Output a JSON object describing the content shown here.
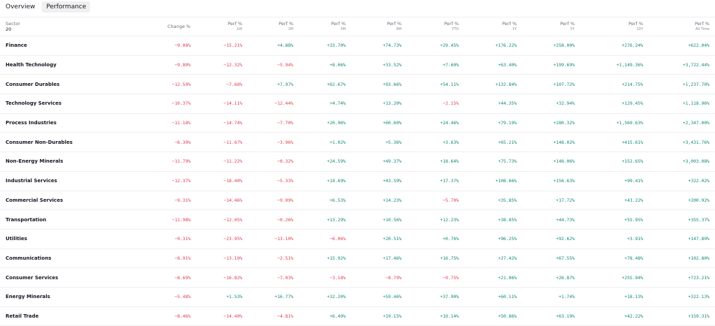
{
  "tabs": [
    {
      "label": "Overview",
      "active": false
    },
    {
      "label": "Performance",
      "active": true
    }
  ],
  "table": {
    "header": {
      "sector_label": "Sector",
      "sector_count": "20",
      "columns": [
        {
          "label": "Change %",
          "sub": ""
        },
        {
          "label": "Perf %",
          "sub": "1W"
        },
        {
          "label": "Perf %",
          "sub": "1M"
        },
        {
          "label": "Perf %",
          "sub": "3M"
        },
        {
          "label": "Perf %",
          "sub": "6M"
        },
        {
          "label": "Perf %",
          "sub": "YTD"
        },
        {
          "label": "Perf %",
          "sub": "1Y"
        },
        {
          "label": "Perf %",
          "sub": "5Y"
        },
        {
          "label": "Perf %",
          "sub": "10Y"
        },
        {
          "label": "Perf %",
          "sub": "All Time"
        }
      ]
    },
    "rows": [
      {
        "name": "Finance",
        "values": [
          "−9.08%",
          "−15.21%",
          "+4.88%",
          "+33.70%",
          "+74.73%",
          "+29.45%",
          "+176.22%",
          "+258.00%",
          "+276.24%",
          "+622.04%"
        ]
      },
      {
        "name": "Health Technology",
        "values": [
          "−9.80%",
          "−12.32%",
          "−5.94%",
          "+8.06%",
          "+33.52%",
          "+7.60%",
          "+63.40%",
          "+199.69%",
          "+1,149.36%",
          "+3,722.44%"
        ]
      },
      {
        "name": "Consumer Durables",
        "values": [
          "−12.59%",
          "−7.68%",
          "+7.97%",
          "+62.67%",
          "+93.66%",
          "+54.11%",
          "+132.84%",
          "+107.72%",
          "+214.75%",
          "+1,237.70%"
        ]
      },
      {
        "name": "Technology Services",
        "values": [
          "−10.37%",
          "−14.11%",
          "−12.44%",
          "+4.74%",
          "+13.20%",
          "−2.15%",
          "+44.35%",
          "+32.94%",
          "+129.45%",
          "+1,118.96%"
        ]
      },
      {
        "name": "Process Industries",
        "values": [
          "−11.18%",
          "−14.74%",
          "−7.70%",
          "+20.96%",
          "+60.60%",
          "+24.46%",
          "+79.19%",
          "+280.32%",
          "+1,569.63%",
          "+2,347.00%"
        ]
      },
      {
        "name": "Consumer Non-Durables",
        "values": [
          "−6.39%",
          "−11.67%",
          "−3.96%",
          "+1.02%",
          "+5.36%",
          "+3.63%",
          "+65.21%",
          "+148.02%",
          "+415.61%",
          "+3,431.76%"
        ]
      },
      {
        "name": "Non-Energy Minerals",
        "values": [
          "−11.79%",
          "−11.22%",
          "−0.32%",
          "+24.59%",
          "+49.37%",
          "+18.64%",
          "+75.73%",
          "+148.06%",
          "+152.65%",
          "+3,003.08%"
        ]
      },
      {
        "name": "Industrial Services",
        "values": [
          "−12.37%",
          "−18.40%",
          "−5.33%",
          "+14.69%",
          "+43.59%",
          "+17.37%",
          "+108.66%",
          "+156.63%",
          "+99.41%",
          "+322.02%"
        ]
      },
      {
        "name": "Commercial Services",
        "values": [
          "−9.31%",
          "−14.46%",
          "−9.09%",
          "+6.53%",
          "+14.23%",
          "−5.70%",
          "+35.85%",
          "+17.72%",
          "+43.22%",
          "+200.92%"
        ]
      },
      {
        "name": "Transportation",
        "values": [
          "−11.98%",
          "−12.05%",
          "−0.26%",
          "+13.29%",
          "+10.56%",
          "+12.23%",
          "+38.85%",
          "+44.73%",
          "+55.95%",
          "+355.37%"
        ]
      },
      {
        "name": "Utilities",
        "values": [
          "−9.31%",
          "−23.95%",
          "−13.10%",
          "−6.06%",
          "+20.51%",
          "+0.76%",
          "+96.25%",
          "+92.62%",
          "+3.91%",
          "+147.89%"
        ]
      },
      {
        "name": "Communications",
        "values": [
          "−8.91%",
          "−13.19%",
          "−2.51%",
          "+15.92%",
          "+17.46%",
          "+16.75%",
          "+27.42%",
          "+67.55%",
          "+78.48%",
          "+102.80%"
        ]
      },
      {
        "name": "Consumer Services",
        "values": [
          "−8.69%",
          "−16.82%",
          "−7.03%",
          "−3.18%",
          "−8.79%",
          "−9.75%",
          "+21.06%",
          "+26.87%",
          "+255.94%",
          "+723.21%"
        ]
      },
      {
        "name": "Energy Minerals",
        "values": [
          "−5.48%",
          "+1.53%",
          "+16.77%",
          "+32.20%",
          "+59.46%",
          "+37.90%",
          "+60.11%",
          "+1.74%",
          "+18.13%",
          "+322.13%"
        ]
      },
      {
        "name": "Retail Trade",
        "values": [
          "−8.46%",
          "−14.40%",
          "−4.81%",
          "+6.49%",
          "+19.15%",
          "+10.14%",
          "+50.86%",
          "+63.19%",
          "+42.22%",
          "+159.31%"
        ]
      }
    ]
  },
  "colors": {
    "negative": "#e0424f",
    "positive": "#17897a",
    "tab_active_bg": "#f0f0f0",
    "row_border": "#efefef"
  }
}
